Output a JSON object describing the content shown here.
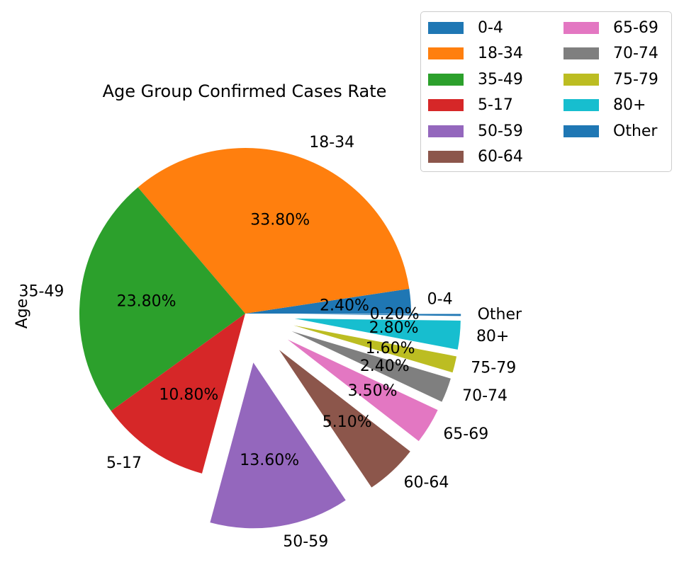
{
  "chart_data": {
    "type": "pie",
    "title": "Age Group Confirmed Cases Rate",
    "ylabel": "Age",
    "slices": [
      {
        "label": "0-4",
        "value": 2.4,
        "pct_label": "2.40%",
        "color": "#1f77b4",
        "explode": 0
      },
      {
        "label": "18-34",
        "value": 33.8,
        "pct_label": "33.80%",
        "color": "#ff7f0e",
        "explode": 0
      },
      {
        "label": "35-49",
        "value": 23.8,
        "pct_label": "23.80%",
        "color": "#2ca02c",
        "explode": 0
      },
      {
        "label": "5-17",
        "value": 10.8,
        "pct_label": "10.80%",
        "color": "#d62728",
        "explode": 0
      },
      {
        "label": "50-59",
        "value": 13.6,
        "pct_label": "13.60%",
        "color": "#9467bd",
        "explode": 0.3
      },
      {
        "label": "60-64",
        "value": 5.1,
        "pct_label": "5.10%",
        "color": "#8c564b",
        "explode": 0.3
      },
      {
        "label": "65-69",
        "value": 3.5,
        "pct_label": "3.50%",
        "color": "#e377c2",
        "explode": 0.3
      },
      {
        "label": "70-74",
        "value": 2.4,
        "pct_label": "2.40%",
        "color": "#7f7f7f",
        "explode": 0.3
      },
      {
        "label": "75-79",
        "value": 1.6,
        "pct_label": "1.60%",
        "color": "#bcbd22",
        "explode": 0.3
      },
      {
        "label": "80+",
        "value": 2.8,
        "pct_label": "2.80%",
        "color": "#17becf",
        "explode": 0.3
      },
      {
        "label": "Other",
        "value": 0.2,
        "pct_label": "0.20%",
        "color": "#1f77b4",
        "explode": 0.3
      }
    ],
    "legend": {
      "location": "top-right",
      "columns": 2
    }
  }
}
